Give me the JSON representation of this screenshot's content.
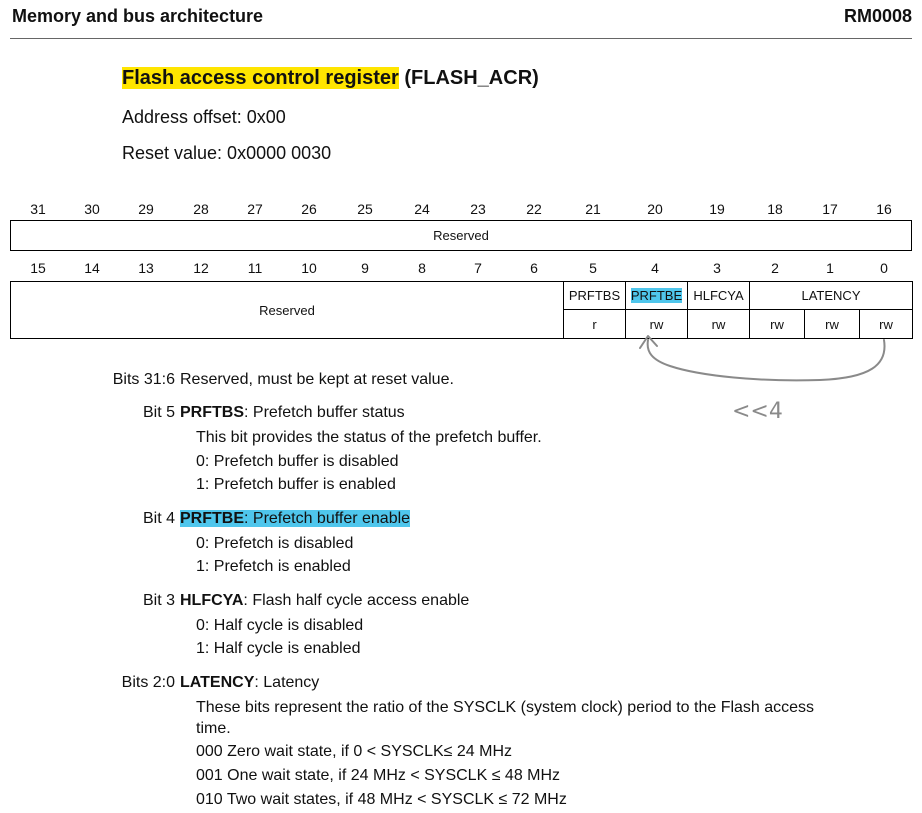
{
  "header": {
    "section": "Memory and bus architecture",
    "doc_id": "RM0008"
  },
  "register": {
    "title": "Flash access control register",
    "acronym": "(FLASH_ACR)",
    "address_offset": "Address offset: 0x00",
    "reset_value": "Reset value: 0x0000 0030"
  },
  "upper_bits": [
    "31",
    "30",
    "29",
    "28",
    "27",
    "26",
    "25",
    "24",
    "23",
    "22",
    "21",
    "20",
    "19",
    "18",
    "17",
    "16"
  ],
  "lower_bits": [
    "15",
    "14",
    "13",
    "12",
    "11",
    "10",
    "9",
    "8",
    "7",
    "6",
    "5",
    "4",
    "3",
    "2",
    "1",
    "0"
  ],
  "upper_reserved": "Reserved",
  "lower_reserved": "Reserved",
  "fields": {
    "prftbs": "PRFTBS",
    "prftbe": "PRFTBE",
    "hlfcya": "HLFCYA",
    "latency": "LATENCY"
  },
  "access": [
    "r",
    "rw",
    "rw",
    "rw",
    "rw",
    "rw"
  ],
  "annotation": {
    "text": "<<4",
    "color": "#8a8a8a"
  },
  "descriptions": {
    "bits31_6": {
      "label": "Bits 31:6",
      "text": "Reserved, must be kept at reset value."
    },
    "bit5": {
      "label": "Bit 5",
      "name": "PRFTBS",
      "title": ": Prefetch buffer status",
      "lines": [
        "This bit provides the status of the prefetch buffer.",
        "0: Prefetch buffer is disabled",
        "1: Prefetch buffer is enabled"
      ]
    },
    "bit4": {
      "label": "Bit 4",
      "name": "PRFTBE",
      "title": ": Prefetch buffer enable",
      "lines": [
        "0: Prefetch is disabled",
        "1: Prefetch is enabled"
      ]
    },
    "bit3": {
      "label": "Bit 3",
      "name": "HLFCYA",
      "title": ": Flash half cycle access enable",
      "lines": [
        "0: Half cycle is disabled",
        "1: Half cycle is enabled"
      ]
    },
    "bits2_0": {
      "label": "Bits 2:0",
      "name": "LATENCY",
      "title": ": Latency",
      "lines": [
        "These bits represent the ratio of the SYSCLK (system clock) period to the Flash access",
        "time.",
        "000 Zero wait state, if 0 < SYSCLK≤  24 MHz",
        "001 One wait state, if 24 MHz < SYSCLK ≤  48 MHz",
        "010 Two wait states, if 48 MHz < SYSCLK ≤ 72 MHz"
      ]
    }
  },
  "colors": {
    "highlight_yellow": "#ffe500",
    "highlight_blue": "#4fc6ec"
  }
}
